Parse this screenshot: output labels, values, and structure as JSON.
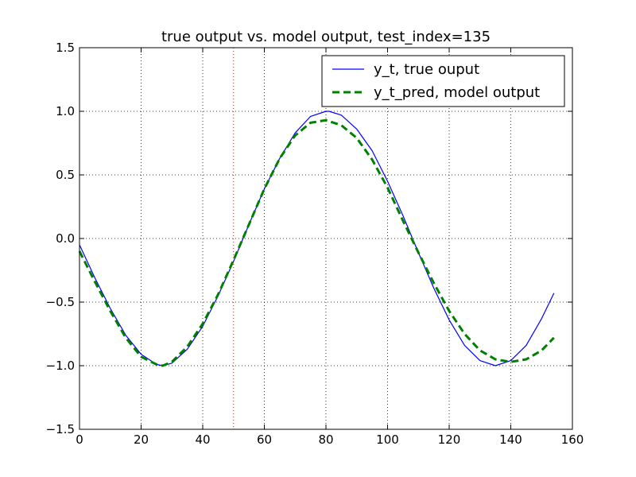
{
  "chart_data": {
    "type": "line",
    "title": "true output vs. model output, test_index=135",
    "xlabel": "",
    "ylabel": "",
    "xlim": [
      0,
      160
    ],
    "ylim": [
      -1.5,
      1.5
    ],
    "x_ticks": [
      0,
      20,
      40,
      60,
      80,
      100,
      120,
      140,
      160
    ],
    "y_ticks": [
      -1.5,
      -1.0,
      -0.5,
      0.0,
      0.5,
      1.0,
      1.5
    ],
    "x_tick_labels": [
      "0",
      "20",
      "40",
      "60",
      "80",
      "100",
      "120",
      "140",
      "160"
    ],
    "y_tick_labels": [
      "−1.5",
      "−1.0",
      "−0.5",
      "0.0",
      "0.5",
      "1.0",
      "1.5"
    ],
    "grid": true,
    "legend_position": "top-right",
    "vertical_marker": {
      "x": 50,
      "color": "#ff0000",
      "style": "dotted"
    },
    "series": [
      {
        "name": "y_t, true ouput",
        "color": "#0000ff",
        "style": "solid",
        "x": [
          0,
          5,
          10,
          15,
          20,
          25,
          27,
          30,
          35,
          40,
          45,
          50,
          55,
          60,
          65,
          70,
          75,
          80,
          81,
          85,
          90,
          95,
          100,
          105,
          110,
          115,
          120,
          125,
          130,
          135,
          140,
          145,
          150,
          154
        ],
        "values": [
          -0.05,
          -0.31,
          -0.55,
          -0.76,
          -0.91,
          -0.99,
          -1.0,
          -0.98,
          -0.87,
          -0.69,
          -0.45,
          -0.18,
          0.11,
          0.39,
          0.63,
          0.83,
          0.96,
          1.0,
          1.0,
          0.97,
          0.86,
          0.69,
          0.45,
          0.18,
          -0.11,
          -0.39,
          -0.64,
          -0.84,
          -0.96,
          -1.0,
          -0.96,
          -0.84,
          -0.63,
          -0.43
        ]
      },
      {
        "name": "y_t_pred, model output",
        "color": "#008000",
        "style": "dashed",
        "x": [
          0,
          5,
          10,
          15,
          20,
          25,
          27,
          30,
          35,
          40,
          45,
          50,
          55,
          60,
          65,
          70,
          75,
          80,
          85,
          90,
          95,
          100,
          105,
          110,
          115,
          120,
          125,
          130,
          135,
          140,
          145,
          150,
          154
        ],
        "values": [
          -0.1,
          -0.34,
          -0.57,
          -0.78,
          -0.93,
          -0.99,
          -1.0,
          -0.97,
          -0.85,
          -0.67,
          -0.44,
          -0.17,
          0.11,
          0.39,
          0.63,
          0.81,
          0.91,
          0.93,
          0.89,
          0.79,
          0.62,
          0.4,
          0.14,
          -0.11,
          -0.35,
          -0.57,
          -0.75,
          -0.88,
          -0.95,
          -0.97,
          -0.95,
          -0.88,
          -0.78
        ]
      }
    ]
  }
}
